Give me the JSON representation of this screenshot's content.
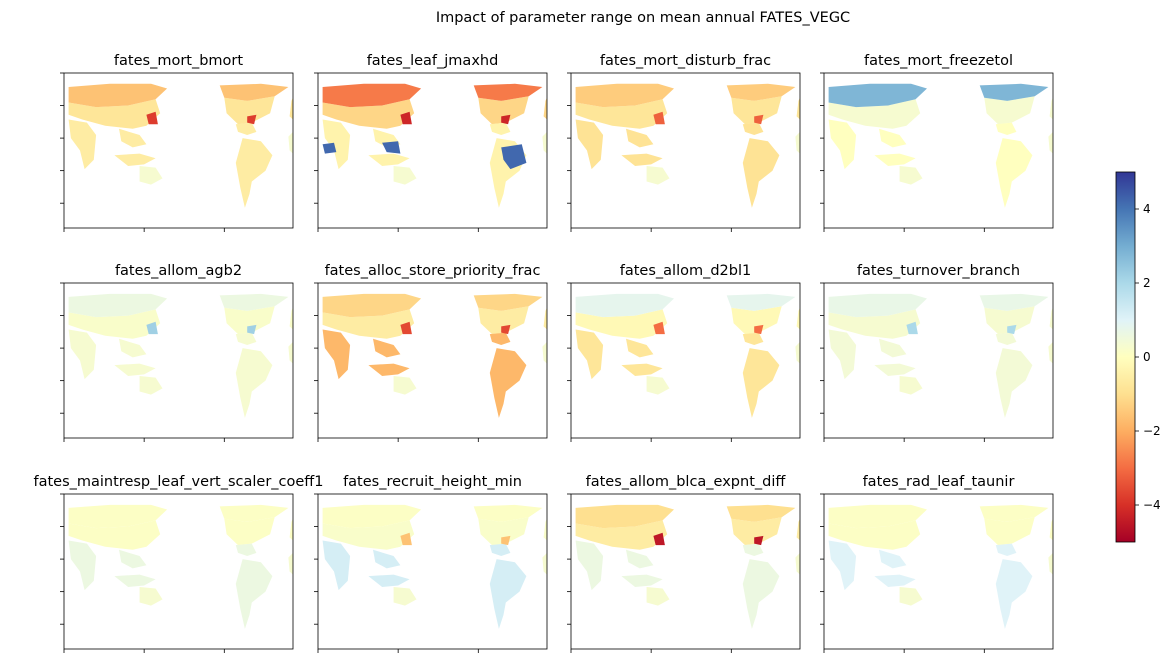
{
  "chart_data": {
    "type": "heatmap",
    "title": "Impact of parameter range on mean annual FATES_VEGC",
    "colormap": "RdYlBu",
    "colormap_stops": [
      "#a50026",
      "#d73027",
      "#f46d43",
      "#fdae61",
      "#fee090",
      "#ffffbf",
      "#e0f3f8",
      "#abd9e9",
      "#74add1",
      "#4575b4",
      "#313695"
    ],
    "colorbar": {
      "vmin": -5,
      "vmax": 5,
      "ticks": [
        -4,
        -2,
        0,
        2,
        4
      ],
      "tick_labels": [
        "−4",
        "−2",
        "0",
        "2",
        "4"
      ]
    },
    "grid": "3x4",
    "panels": [
      {
        "title": "fates_mort_bmort",
        "values": {
          "boreal": -1.6,
          "temperate": -0.8,
          "tropics": -0.6,
          "hotspot": -3.8,
          "blue": 0
        }
      },
      {
        "title": "fates_leaf_jmaxhd",
        "values": {
          "boreal": -2.8,
          "temperate": -1.2,
          "tropics": -0.4,
          "hotspot": -4.2,
          "blue": 4.2
        }
      },
      {
        "title": "fates_mort_disturb_frac",
        "values": {
          "boreal": -1.4,
          "temperate": -0.8,
          "tropics": -0.9,
          "hotspot": -3.2,
          "blue": 0
        }
      },
      {
        "title": "fates_mort_freezetol",
        "values": {
          "boreal": 2.8,
          "temperate": 0.3,
          "tropics": 0,
          "hotspot": 0,
          "blue": 0
        }
      },
      {
        "title": "fates_allom_agb2",
        "values": {
          "boreal": 0.6,
          "temperate": 0.2,
          "tropics": 0.3,
          "hotspot": 2.2,
          "blue": 0
        }
      },
      {
        "title": "fates_alloc_store_priority_frac",
        "values": {
          "boreal": -1.2,
          "temperate": -0.6,
          "tropics": -1.8,
          "hotspot": -3.6,
          "blue": 0
        }
      },
      {
        "title": "fates_allom_d2bl1",
        "values": {
          "boreal": 0.8,
          "temperate": -0.2,
          "tropics": -0.8,
          "hotspot": -3.0,
          "blue": 0
        }
      },
      {
        "title": "fates_turnover_branch",
        "values": {
          "boreal": 0.7,
          "temperate": 0.3,
          "tropics": 0.4,
          "hotspot": 2.0,
          "blue": 0
        }
      },
      {
        "title": "fates_maintresp_leaf_vert_scaler_coeff1",
        "values": {
          "boreal": 0.1,
          "temperate": 0.1,
          "tropics": 0.6,
          "hotspot": 0,
          "blue": 0
        }
      },
      {
        "title": "fates_recruit_height_min",
        "values": {
          "boreal": 0.1,
          "temperate": 0.2,
          "tropics": 1.2,
          "hotspot": -1.6,
          "blue": 0
        }
      },
      {
        "title": "fates_allom_blca_expnt_diff",
        "values": {
          "boreal": -1.0,
          "temperate": -0.6,
          "tropics": 0.6,
          "hotspot": -4.5,
          "blue": 0
        }
      },
      {
        "title": "fates_rad_leaf_taunir",
        "values": {
          "boreal": 0.1,
          "temperate": 0.1,
          "tropics": 1.0,
          "hotspot": 0,
          "blue": 0
        }
      }
    ]
  }
}
